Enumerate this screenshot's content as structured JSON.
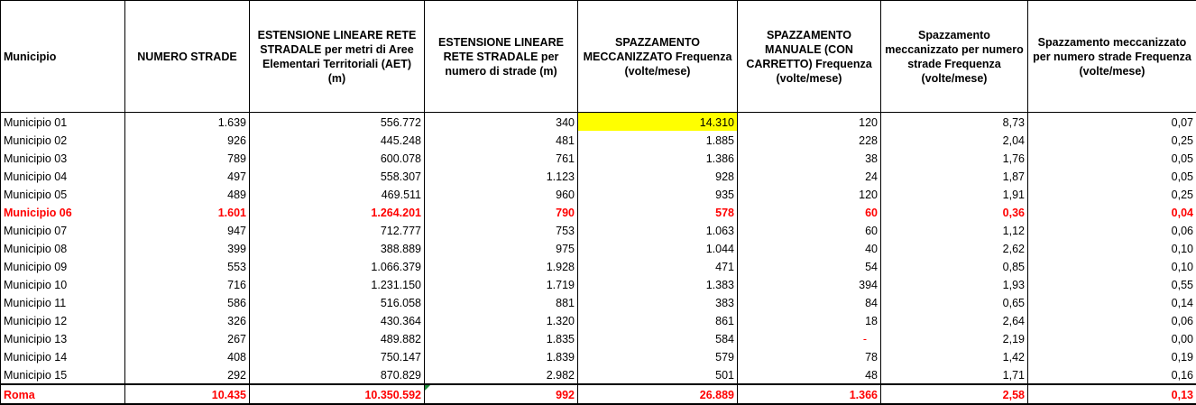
{
  "headers": [
    "Municipio",
    "NUMERO STRADE",
    "ESTENSIONE LINEARE RETE STRADALE per metri di Aree Elementari Territoriali (AET) (m)",
    "ESTENSIONE LINEARE RETE STRADALE per numero di strade (m)",
    "SPAZZAMENTO MECCANIZZATO Frequenza (volte/mese)",
    "SPAZZAMENTO MANUALE (CON CARRETTO) Frequenza (volte/mese)",
    "Spazzamento meccanizzato per numero strade Frequenza (volte/mese)",
    "Spazzamento meccanizzato per numero strade Frequenza (volte/mese)"
  ],
  "rows": [
    [
      "Municipio 01",
      "1.639",
      "556.772",
      "340",
      "14.310",
      "120",
      "8,73",
      "0,07"
    ],
    [
      "Municipio 02",
      "926",
      "445.248",
      "481",
      "1.885",
      "228",
      "2,04",
      "0,25"
    ],
    [
      "Municipio 03",
      "789",
      "600.078",
      "761",
      "1.386",
      "38",
      "1,76",
      "0,05"
    ],
    [
      "Municipio 04",
      "497",
      "558.307",
      "1.123",
      "928",
      "24",
      "1,87",
      "0,05"
    ],
    [
      "Municipio 05",
      "489",
      "469.511",
      "960",
      "935",
      "120",
      "1,91",
      "0,25"
    ],
    [
      "Municipio 06",
      "1.601",
      "1.264.201",
      "790",
      "578",
      "60",
      "0,36",
      "0,04"
    ],
    [
      "Municipio 07",
      "947",
      "712.777",
      "753",
      "1.063",
      "60",
      "1,12",
      "0,06"
    ],
    [
      "Municipio 08",
      "399",
      "388.889",
      "975",
      "1.044",
      "40",
      "2,62",
      "0,10"
    ],
    [
      "Municipio 09",
      "553",
      "1.066.379",
      "1.928",
      "471",
      "54",
      "0,85",
      "0,10"
    ],
    [
      "Municipio 10",
      "716",
      "1.231.150",
      "1.719",
      "1.383",
      "394",
      "1,93",
      "0,55"
    ],
    [
      "Municipio 11",
      "586",
      "516.058",
      "881",
      "383",
      "84",
      "0,65",
      "0,14"
    ],
    [
      "Municipio 12",
      "326",
      "430.364",
      "1.320",
      "861",
      "18",
      "2,64",
      "0,06"
    ],
    [
      "Municipio 13",
      "267",
      "489.882",
      "1.835",
      "584",
      "-",
      "2,19",
      "0,00"
    ],
    [
      "Municipio 14",
      "408",
      "750.147",
      "1.839",
      "579",
      "78",
      "1,42",
      "0,19"
    ],
    [
      "Municipio 15",
      "292",
      "870.829",
      "2.982",
      "501",
      "48",
      "1,71",
      "0,16"
    ]
  ],
  "total": [
    "Roma",
    "10.435",
    "10.350.592",
    "992",
    "26.889",
    "1.366",
    "2,58",
    "0,13"
  ],
  "highlight_row_index": 5,
  "colors": {
    "highlight_text": "#ff0000",
    "yellow_cell": "#ffff00",
    "comment_marker": "#1d8a3a"
  }
}
